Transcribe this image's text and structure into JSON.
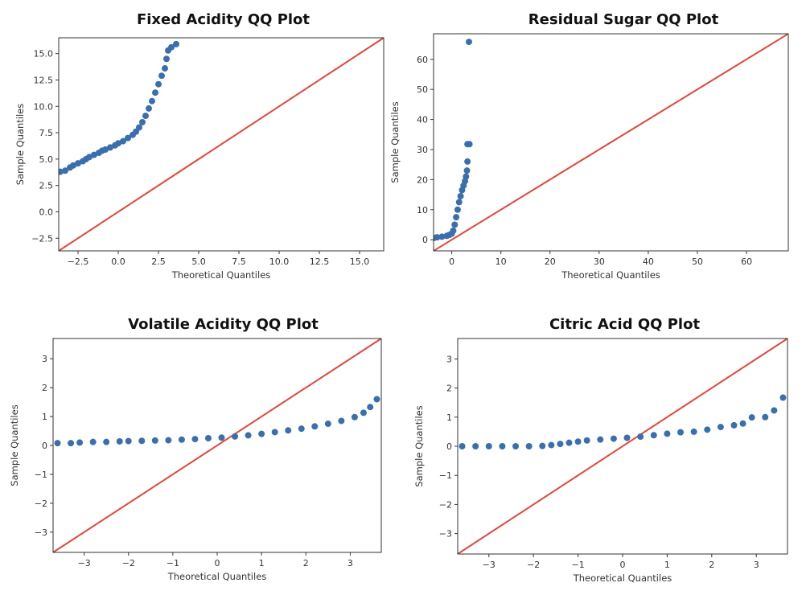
{
  "chart_data": [
    {
      "type": "scatter",
      "title": "Fixed Acidity QQ Plot",
      "xlabel": "Theoretical Quantiles",
      "ylabel": "Sample Quantiles",
      "xlim": [
        -3.7,
        16.5
      ],
      "ylim": [
        -3.7,
        16.5
      ],
      "xticks": [
        -2.5,
        0.0,
        2.5,
        5.0,
        7.5,
        10.0,
        12.5,
        15.0
      ],
      "yticks": [
        -2.5,
        0.0,
        2.5,
        5.0,
        7.5,
        10.0,
        12.5,
        15.0
      ],
      "tick_decimals": 1,
      "reference_line": "45-degree",
      "colors": {
        "points": "#3a6fae",
        "line": "#e2473a"
      },
      "points": [
        [
          -3.6,
          3.8
        ],
        [
          -3.3,
          3.9
        ],
        [
          -3.0,
          4.2
        ],
        [
          -2.8,
          4.4
        ],
        [
          -2.5,
          4.6
        ],
        [
          -2.2,
          4.8
        ],
        [
          -2.0,
          5.0
        ],
        [
          -1.8,
          5.2
        ],
        [
          -1.5,
          5.4
        ],
        [
          -1.2,
          5.6
        ],
        [
          -1.0,
          5.8
        ],
        [
          -0.8,
          5.9
        ],
        [
          -0.5,
          6.1
        ],
        [
          -0.2,
          6.3
        ],
        [
          0.0,
          6.5
        ],
        [
          0.3,
          6.7
        ],
        [
          0.6,
          7.0
        ],
        [
          0.9,
          7.3
        ],
        [
          1.1,
          7.6
        ],
        [
          1.3,
          8.0
        ],
        [
          1.5,
          8.5
        ],
        [
          1.7,
          9.1
        ],
        [
          1.9,
          9.8
        ],
        [
          2.1,
          10.5
        ],
        [
          2.3,
          11.3
        ],
        [
          2.5,
          12.1
        ],
        [
          2.7,
          12.9
        ],
        [
          2.9,
          13.6
        ],
        [
          3.0,
          14.5
        ],
        [
          3.1,
          15.3
        ],
        [
          3.3,
          15.6
        ],
        [
          3.6,
          15.9
        ]
      ]
    },
    {
      "type": "scatter",
      "title": "Residual Sugar QQ Plot",
      "xlabel": "Theoretical Quantiles",
      "ylabel": "Sample Quantiles",
      "xlim": [
        -3.7,
        68.5
      ],
      "ylim": [
        -3.7,
        68.5
      ],
      "xticks": [
        0,
        10,
        20,
        30,
        40,
        50,
        60
      ],
      "yticks": [
        0,
        10,
        20,
        30,
        40,
        50,
        60
      ],
      "tick_decimals": 0,
      "reference_line": "45-degree",
      "colors": {
        "points": "#3a6fae",
        "line": "#e2473a"
      },
      "points": [
        [
          -3.6,
          0.6
        ],
        [
          -3.0,
          0.8
        ],
        [
          -2.0,
          1.0
        ],
        [
          -1.0,
          1.3
        ],
        [
          -0.5,
          1.6
        ],
        [
          0.0,
          2.0
        ],
        [
          0.3,
          3.0
        ],
        [
          0.6,
          5.0
        ],
        [
          0.9,
          7.5
        ],
        [
          1.2,
          10.0
        ],
        [
          1.5,
          12.5
        ],
        [
          1.8,
          14.5
        ],
        [
          2.1,
          16.5
        ],
        [
          2.4,
          18.0
        ],
        [
          2.7,
          19.5
        ],
        [
          2.9,
          21.0
        ],
        [
          3.1,
          23.0
        ],
        [
          3.2,
          26.0
        ],
        [
          3.2,
          31.8
        ],
        [
          3.6,
          31.8
        ],
        [
          3.5,
          65.8
        ]
      ]
    },
    {
      "type": "scatter",
      "title": "Volatile Acidity QQ Plot",
      "xlabel": "Theoretical Quantiles",
      "ylabel": "Sample Quantiles",
      "xlim": [
        -3.7,
        3.7
      ],
      "ylim": [
        -3.7,
        3.7
      ],
      "xticks": [
        -3,
        -2,
        -1,
        0,
        1,
        2,
        3
      ],
      "yticks": [
        -3,
        -2,
        -1,
        0,
        1,
        2,
        3
      ],
      "tick_decimals": 0,
      "reference_line": "45-degree",
      "colors": {
        "points": "#3a6fae",
        "line": "#e2473a"
      },
      "points": [
        [
          -3.6,
          0.08
        ],
        [
          -3.3,
          0.08
        ],
        [
          -3.1,
          0.1
        ],
        [
          -2.8,
          0.12
        ],
        [
          -2.5,
          0.12
        ],
        [
          -2.2,
          0.14
        ],
        [
          -2.0,
          0.15
        ],
        [
          -1.7,
          0.16
        ],
        [
          -1.4,
          0.17
        ],
        [
          -1.1,
          0.18
        ],
        [
          -0.8,
          0.2
        ],
        [
          -0.5,
          0.22
        ],
        [
          -0.2,
          0.25
        ],
        [
          0.1,
          0.27
        ],
        [
          0.4,
          0.31
        ],
        [
          0.7,
          0.35
        ],
        [
          1.0,
          0.4
        ],
        [
          1.3,
          0.46
        ],
        [
          1.6,
          0.52
        ],
        [
          1.9,
          0.58
        ],
        [
          2.2,
          0.66
        ],
        [
          2.5,
          0.75
        ],
        [
          2.8,
          0.85
        ],
        [
          3.1,
          0.98
        ],
        [
          3.3,
          1.13
        ],
        [
          3.45,
          1.33
        ],
        [
          3.6,
          1.6
        ]
      ]
    },
    {
      "type": "scatter",
      "title": "Citric Acid QQ Plot",
      "xlabel": "Theoretical Quantiles",
      "ylabel": "Sample Quantiles",
      "xlim": [
        -3.7,
        3.7
      ],
      "ylim": [
        -3.7,
        3.7
      ],
      "xticks": [
        -3,
        -2,
        -1,
        0,
        1,
        2,
        3
      ],
      "yticks": [
        -3,
        -2,
        -1,
        0,
        1,
        2,
        3
      ],
      "tick_decimals": 0,
      "reference_line": "45-degree",
      "colors": {
        "points": "#3a6fae",
        "line": "#e2473a"
      },
      "points": [
        [
          -3.6,
          0.0
        ],
        [
          -3.3,
          0.0
        ],
        [
          -3.0,
          0.0
        ],
        [
          -2.7,
          0.0
        ],
        [
          -2.4,
          0.0
        ],
        [
          -2.1,
          0.0
        ],
        [
          -1.8,
          0.01
        ],
        [
          -1.6,
          0.04
        ],
        [
          -1.4,
          0.08
        ],
        [
          -1.2,
          0.12
        ],
        [
          -1.0,
          0.16
        ],
        [
          -0.8,
          0.2
        ],
        [
          -0.5,
          0.23
        ],
        [
          -0.2,
          0.26
        ],
        [
          0.1,
          0.29
        ],
        [
          0.4,
          0.33
        ],
        [
          0.7,
          0.38
        ],
        [
          1.0,
          0.43
        ],
        [
          1.3,
          0.48
        ],
        [
          1.6,
          0.5
        ],
        [
          1.9,
          0.57
        ],
        [
          2.2,
          0.66
        ],
        [
          2.5,
          0.72
        ],
        [
          2.7,
          0.78
        ],
        [
          2.9,
          0.99
        ],
        [
          3.2,
          1.0
        ],
        [
          3.4,
          1.23
        ],
        [
          3.6,
          1.67
        ]
      ]
    }
  ]
}
